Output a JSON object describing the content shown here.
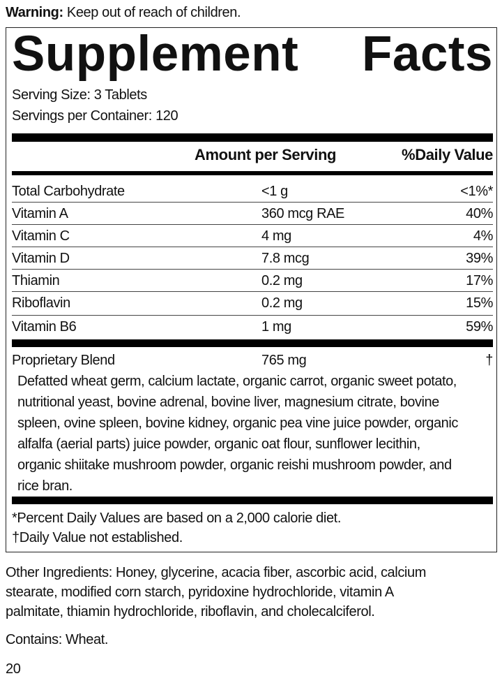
{
  "warning": {
    "label": "Warning:",
    "text": " Keep out of reach of children."
  },
  "title_words": [
    "Supplement",
    "Facts"
  ],
  "serving_size": "Serving Size: 3 Tablets",
  "servings_per_container": "Servings per Container: 120",
  "headers": {
    "amount": "Amount per Serving",
    "dv": "%Daily Value"
  },
  "rows": [
    {
      "name": "Total Carbohydrate",
      "amount": "<1 g",
      "dv": "<1%*"
    },
    {
      "name": "Vitamin A",
      "amount": "360 mcg RAE",
      "dv": "40%"
    },
    {
      "name": "Vitamin C",
      "amount": "4 mg",
      "dv": "4%"
    },
    {
      "name": "Vitamin D",
      "amount": "7.8 mcg",
      "dv": "39%"
    },
    {
      "name": "Thiamin",
      "amount": "0.2 mg",
      "dv": "17%"
    },
    {
      "name": "Riboflavin",
      "amount": "0.2 mg",
      "dv": "15%"
    },
    {
      "name": "Vitamin B6",
      "amount": "1 mg",
      "dv": "59%"
    }
  ],
  "blend": {
    "name": "Proprietary Blend",
    "amount": "765 mg",
    "dv": "†",
    "ingredients": [
      "Defatted wheat germ, calcium lactate, organic carrot, organic sweet potato,",
      "nutritional yeast, bovine adrenal, bovine liver, magnesium citrate, bovine",
      "spleen, ovine spleen, bovine kidney, organic pea vine juice powder, organic",
      "alfalfa (aerial parts) juice powder, organic oat flour, sunflower lecithin,",
      "organic shiitake mushroom powder, organic reishi mushroom powder, and",
      "rice bran."
    ]
  },
  "footnotes": [
    "*Percent Daily Values are based on a 2,000 calorie diet.",
    "†Daily Value not established."
  ],
  "other_ingredients": [
    "Other Ingredients: Honey, glycerine, acacia fiber, ascorbic acid, calcium",
    "stearate,  modified corn starch, pyridoxine hydrochloride, vitamin A",
    "palmitate, thiamin hydrochloride, riboflavin, and cholecalciferol."
  ],
  "contains": "Contains: Wheat.",
  "page_number": "20"
}
